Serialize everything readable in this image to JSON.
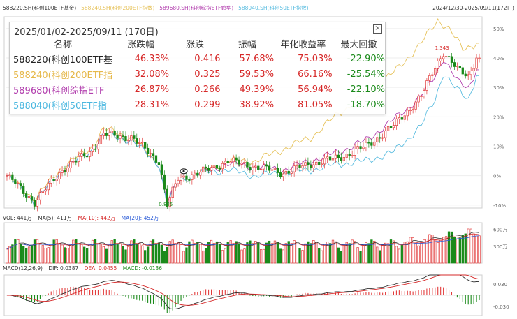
{
  "header": {
    "legend": [
      {
        "label": "588220.SH(科创100ETF基金)",
        "color": "#333333"
      },
      {
        "label": "588240.SH(科创200ETF指数)",
        "color": "#e6c25a"
      },
      {
        "label": "589680.SH(科创综指ETF鹏华)",
        "color": "#b23fae"
      },
      {
        "label": "588040.SH(科创50ETF指数)",
        "color": "#5bbde0"
      }
    ],
    "separator": "|",
    "range": "2024/12/30-2025/09/11(172日)"
  },
  "panel": {
    "title": "2025/01/02-2025/09/11 (170日)",
    "close": "×",
    "columns": [
      "名称",
      "涨跌幅",
      "涨跌",
      "振幅",
      "年化收益率",
      "最大回撤"
    ],
    "rows": [
      {
        "name": "588220(科创100ETF基",
        "chg_pct": "46.33%",
        "chg": "0.416",
        "amp": "57.68%",
        "annual": "75.03%",
        "mdd": "-22.90%",
        "color": "#222222"
      },
      {
        "name": "588240(科创200ETF指",
        "chg_pct": "32.08%",
        "chg": "0.325",
        "amp": "59.53%",
        "annual": "66.16%",
        "mdd": "-25.54%",
        "color": "#e6b84a"
      },
      {
        "name": "589680(科创综指ETF",
        "chg_pct": "26.87%",
        "chg": "0.266",
        "amp": "49.39%",
        "annual": "56.94%",
        "mdd": "-22.10%",
        "color": "#b23fae"
      },
      {
        "name": "588040(科创50ETF指",
        "chg_pct": "28.31%",
        "chg": "0.299",
        "amp": "38.92%",
        "annual": "81.05%",
        "mdd": "-18.70%",
        "color": "#4cb8e0"
      }
    ]
  },
  "volume_pane": {
    "legend": [
      {
        "label": "VOL: 441万",
        "color": "#333333"
      },
      {
        "label": "MA(5): 411万",
        "color": "#333333"
      },
      {
        "label": "MA(10): 442万",
        "color": "#d62828"
      },
      {
        "label": "MA(20): 452万",
        "color": "#2a5bd7"
      }
    ]
  },
  "macd_pane": {
    "legend": [
      {
        "label": "MACD(12,26,9)",
        "color": "#333333"
      },
      {
        "label": "DIF: 0.0387",
        "color": "#333333"
      },
      {
        "label": "DEA: 0.0455",
        "color": "#d62828"
      },
      {
        "label": "MACD: -0.0136",
        "color": "#1a8a1a"
      }
    ]
  },
  "chart_data": {
    "type": "candlestick",
    "ytick_labels": [
      "50%",
      "40%",
      "30%",
      "20%",
      "10%",
      "0%",
      "-10%"
    ],
    "yticks": [
      50,
      40,
      30,
      20,
      10,
      0,
      -10
    ],
    "ylim": [
      -11,
      54
    ],
    "annotations": [
      {
        "label": "1.343",
        "x": 158,
        "y": 42.9
      },
      {
        "label": "0.825",
        "x": 58,
        "y": -10.3
      }
    ],
    "volume": {
      "ytick_labels": [
        "600万",
        "300万"
      ],
      "yticks": [
        600,
        300
      ],
      "ylim": [
        0,
        720
      ]
    },
    "macd": {
      "ytick_labels": [
        "0.030",
        "-0.030"
      ],
      "yticks": [
        0.03,
        -0.03
      ],
      "ylim": [
        -0.055,
        0.055
      ]
    },
    "series": [
      {
        "name": "588220.SH(科创100ETF基金)",
        "anchors": [
          [
            0,
            0
          ],
          [
            10,
            -9
          ],
          [
            20,
            2
          ],
          [
            30,
            8
          ],
          [
            35,
            14
          ],
          [
            45,
            13
          ],
          [
            55,
            5
          ],
          [
            58,
            -10
          ],
          [
            62,
            -1
          ],
          [
            70,
            1
          ],
          [
            80,
            5
          ],
          [
            90,
            3
          ],
          [
            100,
            1
          ],
          [
            110,
            4
          ],
          [
            120,
            6
          ],
          [
            130,
            10
          ],
          [
            140,
            17
          ],
          [
            150,
            27
          ],
          [
            155,
            37
          ],
          [
            158,
            42
          ],
          [
            163,
            36
          ],
          [
            167,
            34
          ],
          [
            170,
            40
          ]
        ]
      },
      {
        "name": "588240.SH(科创200ETF指数)",
        "anchors": [
          [
            0,
            0
          ],
          [
            10,
            -8
          ],
          [
            20,
            3
          ],
          [
            30,
            9
          ],
          [
            35,
            16
          ],
          [
            45,
            13
          ],
          [
            55,
            4
          ],
          [
            58,
            -9
          ],
          [
            62,
            -2
          ],
          [
            70,
            1
          ],
          [
            80,
            5
          ],
          [
            90,
            5
          ],
          [
            100,
            9
          ],
          [
            110,
            13
          ],
          [
            120,
            21
          ],
          [
            130,
            28
          ],
          [
            140,
            35
          ],
          [
            150,
            45
          ],
          [
            156,
            53
          ],
          [
            160,
            50
          ],
          [
            165,
            43
          ],
          [
            170,
            45
          ]
        ]
      },
      {
        "name": "589680.SH(科创综指ETF鹏华)",
        "anchors": [
          [
            0,
            0
          ],
          [
            10,
            -9
          ],
          [
            20,
            2
          ],
          [
            30,
            8
          ],
          [
            35,
            14
          ],
          [
            45,
            12
          ],
          [
            55,
            4
          ],
          [
            58,
            -9
          ],
          [
            62,
            -2
          ],
          [
            70,
            1
          ],
          [
            80,
            4
          ],
          [
            90,
            3
          ],
          [
            100,
            2
          ],
          [
            110,
            5
          ],
          [
            120,
            8
          ],
          [
            130,
            12
          ],
          [
            140,
            19
          ],
          [
            150,
            27
          ],
          [
            155,
            34
          ],
          [
            158,
            40
          ],
          [
            163,
            32
          ],
          [
            167,
            30
          ],
          [
            170,
            36
          ]
        ]
      },
      {
        "name": "588040.SH(科创50ETF指数)",
        "anchors": [
          [
            0,
            0
          ],
          [
            10,
            -9
          ],
          [
            20,
            2
          ],
          [
            30,
            8
          ],
          [
            35,
            14
          ],
          [
            45,
            12
          ],
          [
            55,
            4
          ],
          [
            58,
            -10
          ],
          [
            62,
            -2
          ],
          [
            70,
            1
          ],
          [
            80,
            2
          ],
          [
            90,
            0
          ],
          [
            100,
            1
          ],
          [
            110,
            2
          ],
          [
            120,
            4
          ],
          [
            130,
            5
          ],
          [
            140,
            8
          ],
          [
            150,
            17
          ],
          [
            155,
            26
          ],
          [
            158,
            35
          ],
          [
            162,
            30
          ],
          [
            167,
            26
          ],
          [
            170,
            34
          ]
        ]
      }
    ]
  }
}
